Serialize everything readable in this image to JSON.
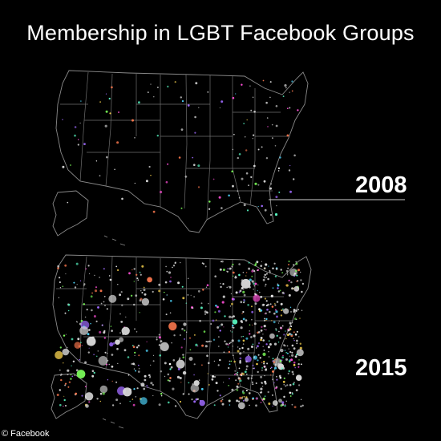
{
  "title": "Membership in LGBT Facebook Groups",
  "panels": [
    {
      "year": "2008",
      "density": "sparse"
    },
    {
      "year": "2015",
      "density": "dense"
    }
  ],
  "credit": "© Facebook",
  "colors": {
    "background": "#000000",
    "borders": "#8a8a8a",
    "text": "#ffffff",
    "dots": [
      "#ff4fd8",
      "#4fd8ff",
      "#7cff5a",
      "#ffd84f",
      "#a06bff",
      "#ff7a4f",
      "#5affc8",
      "#ffffff"
    ]
  }
}
